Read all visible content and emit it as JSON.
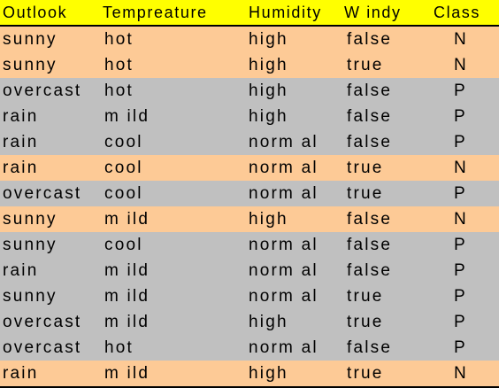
{
  "table": {
    "columns": [
      "Outlook",
      "Tempreature",
      "Humidity",
      "W indy",
      "Class"
    ],
    "rows": [
      {
        "cells": [
          "sunny",
          "hot",
          "high",
          "false",
          "N"
        ],
        "color": "#fdca96"
      },
      {
        "cells": [
          "sunny",
          "hot",
          "high",
          "true",
          "N"
        ],
        "color": "#fdca96"
      },
      {
        "cells": [
          "overcast",
          "hot",
          "high",
          "false",
          "P"
        ],
        "color": "#c0c0c0"
      },
      {
        "cells": [
          "rain",
          "m ild",
          "high",
          "false",
          "P"
        ],
        "color": "#c0c0c0"
      },
      {
        "cells": [
          "rain",
          "cool",
          "norm al",
          "false",
          "P"
        ],
        "color": "#c0c0c0"
      },
      {
        "cells": [
          "rain",
          "cool",
          "norm al",
          "true",
          "N"
        ],
        "color": "#fdca96"
      },
      {
        "cells": [
          "overcast",
          "cool",
          "norm al",
          "true",
          "P"
        ],
        "color": "#c0c0c0"
      },
      {
        "cells": [
          "sunny",
          "m ild",
          "high",
          "false",
          "N"
        ],
        "color": "#fdca96"
      },
      {
        "cells": [
          "sunny",
          "cool",
          "norm al",
          "false",
          "P"
        ],
        "color": "#c0c0c0"
      },
      {
        "cells": [
          "rain",
          "m ild",
          "norm al",
          "false",
          "P"
        ],
        "color": "#c0c0c0"
      },
      {
        "cells": [
          "sunny",
          "m ild",
          "norm al",
          "true",
          "P"
        ],
        "color": "#c0c0c0"
      },
      {
        "cells": [
          "overcast",
          "m ild",
          "high",
          "true",
          "P"
        ],
        "color": "#c0c0c0"
      },
      {
        "cells": [
          "overcast",
          "hot",
          "norm al",
          "false",
          "P"
        ],
        "color": "#c0c0c0"
      },
      {
        "cells": [
          "rain",
          "m ild",
          "high",
          "true",
          "N"
        ],
        "color": "#fdca96"
      }
    ],
    "header_color": "#ffff00"
  }
}
